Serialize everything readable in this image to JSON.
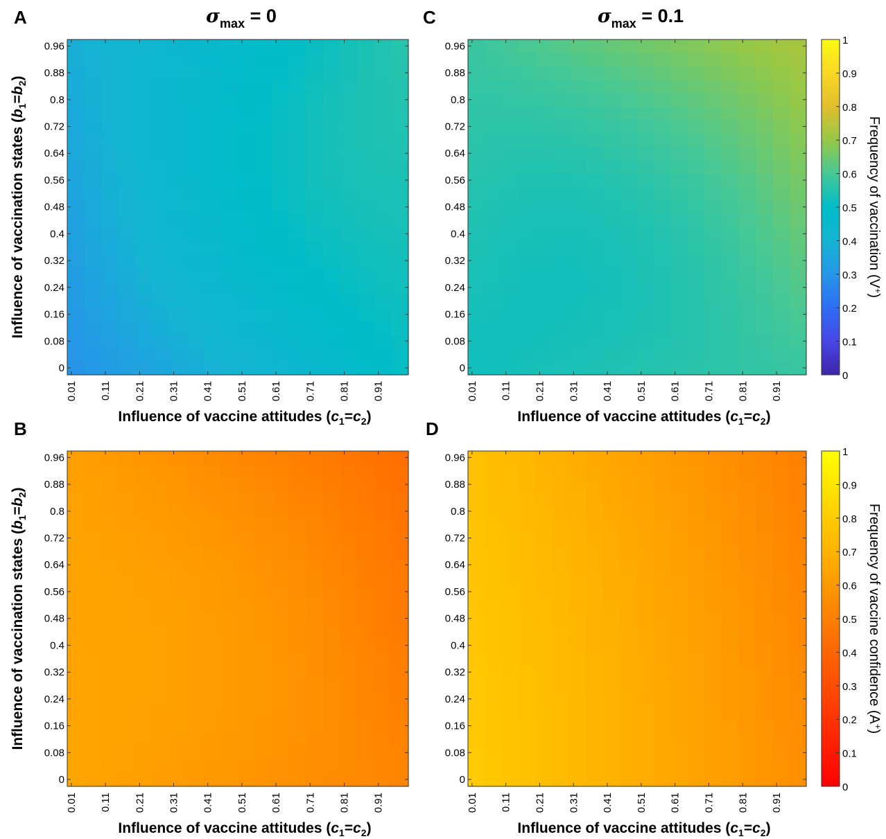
{
  "panels": [
    {
      "id": "A",
      "letter": "A",
      "column_title": {
        "symbol": "σ",
        "subscript": "max",
        "rest": " = 0"
      },
      "xlabel": {
        "before": "Influence of vaccine attitudes (",
        "var1": "c",
        "sub1": "1",
        "mid": "=",
        "var2": "c",
        "sub2": "2",
        "after": ")"
      },
      "ylabel": {
        "before": "Influence of vaccination states (",
        "var1": "b",
        "sub1": "1",
        "mid": "=",
        "var2": "b",
        "sub2": "2",
        "after": ")"
      },
      "colormap": "parula",
      "cmin": 0,
      "cmax": 1,
      "value_model": {
        "bl": 0.29,
        "br": 0.51,
        "tl": 0.38,
        "tr": 0.56,
        "mid": 0.485
      }
    },
    {
      "id": "C",
      "letter": "C",
      "column_title": {
        "symbol": "σ",
        "subscript": "max",
        "rest": " = 0.1"
      },
      "xlabel": {
        "before": "Influence of vaccine attitudes (",
        "var1": "c",
        "sub1": "1",
        "mid": "=",
        "var2": "c",
        "sub2": "2",
        "after": ")"
      },
      "ylabel": null,
      "colormap": "parula",
      "cmin": 0,
      "cmax": 1,
      "value_model": {
        "bl": 0.52,
        "br": 0.58,
        "tl": 0.58,
        "tr": 0.73,
        "mid": 0.55
      }
    },
    {
      "id": "B",
      "letter": "B",
      "column_title": null,
      "xlabel": {
        "before": "Influence of vaccine attitudes (",
        "var1": "c",
        "sub1": "1",
        "mid": "=",
        "var2": "c",
        "sub2": "2",
        "after": ")"
      },
      "ylabel": {
        "before": "Influence of vaccination states (",
        "var1": "b",
        "sub1": "1",
        "mid": "=",
        "var2": "b",
        "sub2": "2",
        "after": ")"
      },
      "colormap": "autumn",
      "cmin": 0,
      "cmax": 1,
      "value_model": {
        "bl": 0.65,
        "br": 0.52,
        "tl": 0.63,
        "tr": 0.43,
        "mid": 0.6
      }
    },
    {
      "id": "D",
      "letter": "D",
      "column_title": null,
      "xlabel": {
        "before": "Influence of vaccine attitudes (",
        "var1": "c",
        "sub1": "1",
        "mid": "=",
        "var2": "c",
        "sub2": "2",
        "after": ")"
      },
      "ylabel": null,
      "colormap": "autumn",
      "cmin": 0,
      "cmax": 1,
      "value_model": {
        "bl": 0.8,
        "br": 0.56,
        "tl": 0.76,
        "tr": 0.5,
        "mid": 0.67
      }
    }
  ],
  "chart_data": [
    {
      "type": "heatmap",
      "panel": "A",
      "x_tick_labels": [
        "0.01",
        "0.11",
        "0.21",
        "0.31",
        "0.41",
        "0.51",
        "0.61",
        "0.71",
        "0.81",
        "0.91"
      ],
      "y_tick_labels": [
        "0",
        "0.08",
        "0.16",
        "0.24",
        "0.32",
        "0.4",
        "0.48",
        "0.56",
        "0.64",
        "0.72",
        "0.8",
        "0.88",
        "0.96"
      ],
      "x_range": [
        0,
        1
      ],
      "y_range": [
        0,
        1
      ],
      "grid_cols": 20,
      "grid_rows": 25,
      "color_range": [
        0,
        1
      ],
      "colorbar_label": ""
    },
    {
      "type": "heatmap",
      "panel": "C",
      "x_tick_labels": [
        "0.01",
        "0.11",
        "0.21",
        "0.31",
        "0.41",
        "0.51",
        "0.61",
        "0.71",
        "0.81",
        "0.91"
      ],
      "y_tick_labels": [
        "0",
        "0.08",
        "0.16",
        "0.24",
        "0.32",
        "0.4",
        "0.48",
        "0.56",
        "0.64",
        "0.72",
        "0.8",
        "0.88",
        "0.96"
      ],
      "x_range": [
        0,
        1
      ],
      "y_range": [
        0,
        1
      ],
      "grid_cols": 20,
      "grid_rows": 25,
      "color_range": [
        0,
        1
      ],
      "colorbar_label": "Frequency of vaccination (V+)"
    },
    {
      "type": "heatmap",
      "panel": "B",
      "x_tick_labels": [
        "0.01",
        "0.11",
        "0.21",
        "0.31",
        "0.41",
        "0.51",
        "0.61",
        "0.71",
        "0.81",
        "0.91"
      ],
      "y_tick_labels": [
        "0",
        "0.08",
        "0.16",
        "0.24",
        "0.32",
        "0.4",
        "0.48",
        "0.56",
        "0.64",
        "0.72",
        "0.8",
        "0.88",
        "0.96"
      ],
      "x_range": [
        0,
        1
      ],
      "y_range": [
        0,
        1
      ],
      "grid_cols": 20,
      "grid_rows": 25,
      "color_range": [
        0,
        1
      ],
      "colorbar_label": ""
    },
    {
      "type": "heatmap",
      "panel": "D",
      "x_tick_labels": [
        "0.01",
        "0.11",
        "0.21",
        "0.31",
        "0.41",
        "0.51",
        "0.61",
        "0.71",
        "0.81",
        "0.91"
      ],
      "y_tick_labels": [
        "0",
        "0.08",
        "0.16",
        "0.24",
        "0.32",
        "0.4",
        "0.48",
        "0.56",
        "0.64",
        "0.72",
        "0.8",
        "0.88",
        "0.96"
      ],
      "x_range": [
        0,
        1
      ],
      "y_range": [
        0,
        1
      ],
      "grid_cols": 20,
      "grid_rows": 25,
      "color_range": [
        0,
        1
      ],
      "colorbar_label": "Frequency of vaccine confidence (A+)"
    }
  ],
  "colorbars": [
    {
      "id": "top",
      "colormap": "parula",
      "tick_labels": [
        "0",
        "0.1",
        "0.2",
        "0.3",
        "0.4",
        "0.5",
        "0.6",
        "0.7",
        "0.8",
        "0.9",
        "1"
      ],
      "label": {
        "text": "Frequency of vaccination (V",
        "sup": "+",
        "after": ")"
      }
    },
    {
      "id": "bottom",
      "colormap": "autumn",
      "tick_labels": [
        "0",
        "0.1",
        "0.2",
        "0.3",
        "0.4",
        "0.5",
        "0.6",
        "0.7",
        "0.8",
        "0.9",
        "1"
      ],
      "label": {
        "text": "Frequency of vaccine confidence (A",
        "sup": "+",
        "after": ")"
      }
    }
  ]
}
